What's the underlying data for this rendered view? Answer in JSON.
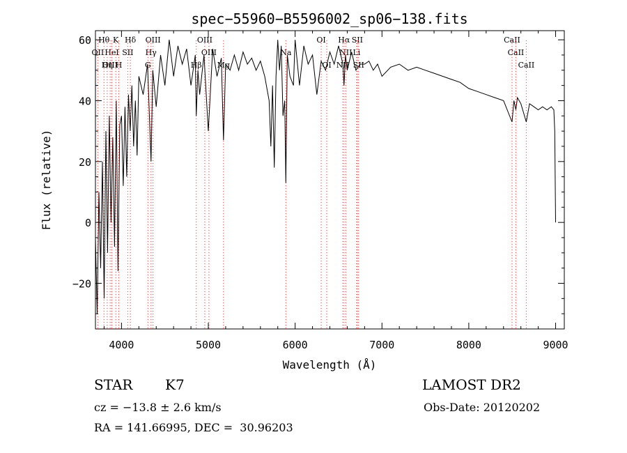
{
  "chart_data": {
    "type": "line",
    "title": "spec−55960−B5596002_sp06−138.fits",
    "xlabel": "Wavelength (Å)",
    "ylabel": "Flux (relative)",
    "xlim": [
      3700,
      9100
    ],
    "ylim": [
      -35,
      63
    ],
    "x_ticks": [
      4000,
      5000,
      6000,
      7000,
      8000,
      9000
    ],
    "y_ticks": [
      -20,
      0,
      20,
      40,
      60
    ],
    "y_tick_labels": [
      "−20",
      "0",
      "20",
      "40",
      "60"
    ],
    "grid": false,
    "legend": "none",
    "series": [
      {
        "x": [
          3700,
          3720,
          3740,
          3760,
          3780,
          3800,
          3820,
          3840,
          3860,
          3880,
          3900,
          3920,
          3940,
          3960,
          3980,
          4000,
          4020,
          4040,
          4060,
          4080,
          4100,
          4120,
          4140,
          4160,
          4180,
          4200,
          4250,
          4300,
          4340,
          4360,
          4400,
          4450,
          4500,
          4550,
          4600,
          4650,
          4700,
          4750,
          4800,
          4850,
          4861,
          4880,
          4900,
          4950,
          5000,
          5050,
          5100,
          5150,
          5175,
          5200,
          5250,
          5300,
          5350,
          5400,
          5450,
          5500,
          5550,
          5600,
          5650,
          5700,
          5720,
          5740,
          5760,
          5780,
          5800,
          5820,
          5840,
          5860,
          5880,
          5893,
          5910,
          5940,
          5980,
          6000,
          6050,
          6100,
          6150,
          6200,
          6250,
          6300,
          6350,
          6400,
          6450,
          6500,
          6550,
          6563,
          6580,
          6600,
          6650,
          6700,
          6750,
          6800,
          6850,
          6900,
          6950,
          7000,
          7100,
          7200,
          7300,
          7400,
          7500,
          7600,
          7700,
          7800,
          7900,
          8000,
          8100,
          8200,
          8300,
          8400,
          8498,
          8520,
          8542,
          8560,
          8600,
          8662,
          8700,
          8750,
          8800,
          8850,
          8900,
          8950,
          8980,
          8990,
          9000
        ],
        "y": [
          -5,
          -30,
          10,
          -15,
          20,
          -25,
          30,
          -10,
          35,
          0,
          28,
          -8,
          40,
          -16,
          32,
          35,
          12,
          38,
          15,
          42,
          30,
          45,
          25,
          40,
          22,
          48,
          42,
          52,
          20,
          50,
          38,
          55,
          45,
          60,
          48,
          58,
          52,
          57,
          45,
          55,
          35,
          50,
          42,
          55,
          30,
          57,
          48,
          54,
          27,
          52,
          50,
          55,
          50,
          56,
          52,
          54,
          50,
          53,
          48,
          40,
          25,
          45,
          18,
          48,
          60,
          50,
          58,
          35,
          40,
          13,
          55,
          48,
          45,
          60,
          45,
          58,
          52,
          55,
          42,
          53,
          50,
          56,
          52,
          58,
          52,
          45,
          55,
          50,
          56,
          50,
          52,
          52,
          53,
          50,
          52,
          48,
          51,
          52,
          50,
          51,
          50,
          49,
          48,
          47,
          46,
          44,
          43,
          42,
          41,
          40,
          33,
          40,
          37,
          41,
          39,
          33,
          39,
          38,
          37,
          38,
          37,
          38,
          37,
          30,
          0
        ]
      }
    ],
    "line_markers": [
      {
        "label": "Hθ",
        "x": 3798,
        "row": 0
      },
      {
        "label": "K",
        "x": 3934,
        "row": 0
      },
      {
        "label": "Hδ",
        "x": 4102,
        "row": 0
      },
      {
        "label": "OIII",
        "x": 4363,
        "row": 0
      },
      {
        "label": "OIII",
        "x": 4959,
        "row": 0
      },
      {
        "label": "OI",
        "x": 6300,
        "row": 0
      },
      {
        "label": "Hα",
        "x": 6563,
        "row": 0
      },
      {
        "label": "SII",
        "x": 6716,
        "row": 0
      },
      {
        "label": "CaII",
        "x": 8498,
        "row": 0
      },
      {
        "label": "OII",
        "x": 3727,
        "row": 1
      },
      {
        "label": "HeI",
        "x": 3889,
        "row": 1
      },
      {
        "label": "SII",
        "x": 4072,
        "row": 1
      },
      {
        "label": "Hγ",
        "x": 4340,
        "row": 1
      },
      {
        "label": "OIII",
        "x": 5007,
        "row": 1
      },
      {
        "label": "Na",
        "x": 5893,
        "row": 1
      },
      {
        "label": "NII",
        "x": 6583,
        "row": 1
      },
      {
        "label": "Li",
        "x": 6708,
        "row": 1
      },
      {
        "label": "CaII",
        "x": 8542,
        "row": 1
      },
      {
        "label": "OIII",
        "x": 3869,
        "row": 2
      },
      {
        "label": "Hη",
        "x": 3835,
        "row": 2
      },
      {
        "label": "H",
        "x": 3969,
        "row": 2
      },
      {
        "label": "G",
        "x": 4304,
        "row": 2
      },
      {
        "label": "Hβ",
        "x": 4861,
        "row": 2
      },
      {
        "label": "Mg",
        "x": 5175,
        "row": 2
      },
      {
        "label": "OI",
        "x": 6364,
        "row": 2
      },
      {
        "label": "NII",
        "x": 6548,
        "row": 2
      },
      {
        "label": "SII",
        "x": 6731,
        "row": 2
      },
      {
        "label": "CaII",
        "x": 8662,
        "row": 2
      }
    ]
  },
  "info": {
    "object_class": "STAR",
    "subclass": "K7",
    "survey": "LAMOST DR2",
    "cz": "cz = −13.8 ± 2.6 km/s",
    "obs_date": "Obs-Date: 20120202",
    "radec": "RA = 141.66995, DEC =  30.96203"
  }
}
